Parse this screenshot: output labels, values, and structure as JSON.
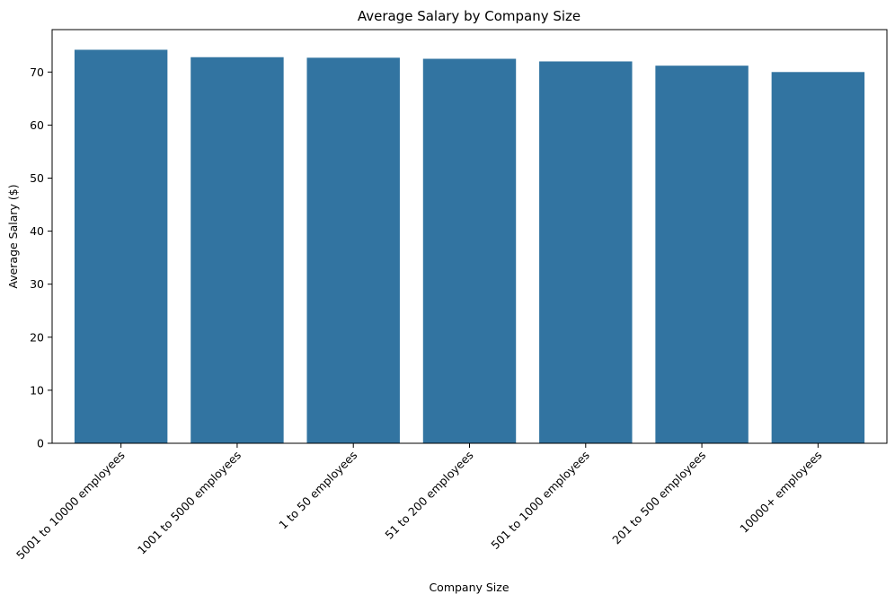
{
  "chart_data": {
    "type": "bar",
    "title": "Average Salary by Company Size",
    "xlabel": "Company Size",
    "ylabel": "Average Salary ($)",
    "categories": [
      "5001 to 10000 employees",
      "1001 to 5000 employees",
      "1 to 50 employees",
      "51 to 200 employees",
      "501 to 1000 employees",
      "201 to 500 employees",
      "10000+ employees"
    ],
    "values": [
      74.2,
      72.8,
      72.7,
      72.5,
      72.0,
      71.2,
      70.0
    ],
    "ylim": [
      0,
      78
    ],
    "yticks": [
      0,
      10,
      20,
      30,
      40,
      50,
      60,
      70
    ],
    "grid": false,
    "bar_color": "#3274a1"
  }
}
